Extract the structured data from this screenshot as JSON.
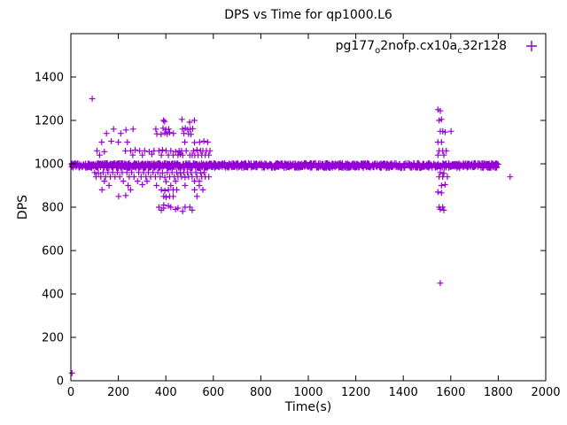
{
  "title": "DPS vs Time for qp1000.L6",
  "axes": {
    "x_label": "Time(s)",
    "y_label": "DPS"
  },
  "legend": {
    "seg0": "pg177",
    "seg1": "o",
    "seg2": "2nofp.cx10a",
    "seg3": "c",
    "seg4": "32r128",
    "marker": "plus"
  },
  "colors": {
    "marker": "#9400D3",
    "axis": "#000000",
    "background": "#FFFFFF"
  },
  "chart_data": {
    "type": "scatter",
    "title": "DPS vs Time for qp1000.L6",
    "xlabel": "Time(s)",
    "ylabel": "DPS",
    "series_name": "pg177_o2nofp.cx10a_c32r128",
    "marker": "plus",
    "xlim": [
      0,
      2000
    ],
    "ylim": [
      0,
      1600
    ],
    "x_ticks": [
      0,
      200,
      400,
      600,
      800,
      1000,
      1200,
      1400,
      1600,
      1800,
      2000
    ],
    "y_ticks": [
      0,
      200,
      400,
      600,
      800,
      1000,
      1200,
      1400
    ],
    "grid": false,
    "legend_position": "top-right-inside",
    "band": {
      "x_start": 0,
      "x_end": 1800,
      "y_center": 992,
      "y_halfwidth": 11,
      "count": 1300,
      "seed": 42
    },
    "points": [
      [
        90,
        1300
      ],
      [
        390,
        1200
      ],
      [
        468,
        1205
      ],
      [
        500,
        1192
      ],
      [
        520,
        1200
      ],
      [
        395,
        1195
      ],
      [
        180,
        1160
      ],
      [
        232,
        1156
      ],
      [
        262,
        1160
      ],
      [
        358,
        1160
      ],
      [
        388,
        1164
      ],
      [
        400,
        1158
      ],
      [
        412,
        1160
      ],
      [
        470,
        1160
      ],
      [
        482,
        1164
      ],
      [
        492,
        1158
      ],
      [
        503,
        1160
      ],
      [
        513,
        1162
      ],
      [
        150,
        1140
      ],
      [
        210,
        1140
      ],
      [
        362,
        1138
      ],
      [
        380,
        1136
      ],
      [
        396,
        1142
      ],
      [
        406,
        1138
      ],
      [
        416,
        1144
      ],
      [
        432,
        1140
      ],
      [
        476,
        1140
      ],
      [
        496,
        1138
      ],
      [
        506,
        1136
      ],
      [
        130,
        1100
      ],
      [
        170,
        1104
      ],
      [
        200,
        1100
      ],
      [
        238,
        1100
      ],
      [
        480,
        1100
      ],
      [
        521,
        1098
      ],
      [
        542,
        1100
      ],
      [
        560,
        1104
      ],
      [
        576,
        1100
      ],
      [
        110,
        1060
      ],
      [
        141,
        1056
      ],
      [
        230,
        1060
      ],
      [
        252,
        1060
      ],
      [
        271,
        1064
      ],
      [
        290,
        1060
      ],
      [
        311,
        1060
      ],
      [
        330,
        1056
      ],
      [
        350,
        1060
      ],
      [
        371,
        1060
      ],
      [
        386,
        1064
      ],
      [
        401,
        1060
      ],
      [
        421,
        1060
      ],
      [
        441,
        1056
      ],
      [
        456,
        1060
      ],
      [
        466,
        1060
      ],
      [
        486,
        1060
      ],
      [
        516,
        1060
      ],
      [
        531,
        1064
      ],
      [
        546,
        1060
      ],
      [
        556,
        1060
      ],
      [
        571,
        1060
      ],
      [
        586,
        1060
      ],
      [
        121,
        1040
      ],
      [
        261,
        1040
      ],
      [
        301,
        1040
      ],
      [
        341,
        1044
      ],
      [
        381,
        1040
      ],
      [
        411,
        1040
      ],
      [
        431,
        1040
      ],
      [
        451,
        1040
      ],
      [
        461,
        1044
      ],
      [
        471,
        1040
      ],
      [
        501,
        1040
      ],
      [
        511,
        1040
      ],
      [
        522,
        1040
      ],
      [
        536,
        1040
      ],
      [
        551,
        1040
      ],
      [
        566,
        1040
      ],
      [
        581,
        1040
      ],
      [
        100,
        960
      ],
      [
        116,
        956
      ],
      [
        136,
        960
      ],
      [
        156,
        960
      ],
      [
        176,
        960
      ],
      [
        196,
        960
      ],
      [
        216,
        960
      ],
      [
        236,
        960
      ],
      [
        256,
        960
      ],
      [
        286,
        960
      ],
      [
        306,
        960
      ],
      [
        326,
        960
      ],
      [
        346,
        960
      ],
      [
        366,
        960
      ],
      [
        386,
        958
      ],
      [
        406,
        960
      ],
      [
        426,
        960
      ],
      [
        446,
        960
      ],
      [
        461,
        958
      ],
      [
        476,
        960
      ],
      [
        491,
        960
      ],
      [
        506,
        960
      ],
      [
        526,
        960
      ],
      [
        546,
        958
      ],
      [
        561,
        960
      ],
      [
        106,
        940
      ],
      [
        126,
        940
      ],
      [
        146,
        940
      ],
      [
        166,
        940
      ],
      [
        186,
        940
      ],
      [
        206,
        940
      ],
      [
        246,
        940
      ],
      [
        266,
        940
      ],
      [
        296,
        940
      ],
      [
        316,
        940
      ],
      [
        336,
        940
      ],
      [
        356,
        940
      ],
      [
        376,
        940
      ],
      [
        396,
        938
      ],
      [
        416,
        940
      ],
      [
        436,
        940
      ],
      [
        451,
        940
      ],
      [
        466,
        940
      ],
      [
        481,
        938
      ],
      [
        496,
        940
      ],
      [
        511,
        940
      ],
      [
        531,
        940
      ],
      [
        551,
        940
      ],
      [
        566,
        940
      ],
      [
        581,
        940
      ],
      [
        141,
        920
      ],
      [
        221,
        920
      ],
      [
        281,
        920
      ],
      [
        321,
        920
      ],
      [
        401,
        918
      ],
      [
        441,
        920
      ],
      [
        521,
        920
      ],
      [
        541,
        920
      ],
      [
        161,
        900
      ],
      [
        241,
        900
      ],
      [
        301,
        904
      ],
      [
        361,
        900
      ],
      [
        421,
        900
      ],
      [
        481,
        900
      ],
      [
        541,
        900
      ],
      [
        131,
        880
      ],
      [
        251,
        880
      ],
      [
        381,
        880
      ],
      [
        396,
        876
      ],
      [
        411,
        880
      ],
      [
        431,
        880
      ],
      [
        446,
        880
      ],
      [
        521,
        880
      ],
      [
        556,
        880
      ],
      [
        201,
        850
      ],
      [
        231,
        854
      ],
      [
        391,
        850
      ],
      [
        401,
        846
      ],
      [
        416,
        850
      ],
      [
        431,
        850
      ],
      [
        531,
        850
      ],
      [
        391,
        810
      ],
      [
        411,
        806
      ],
      [
        371,
        800
      ],
      [
        391,
        796
      ],
      [
        421,
        800
      ],
      [
        451,
        796
      ],
      [
        481,
        800
      ],
      [
        501,
        800
      ],
      [
        381,
        786
      ],
      [
        441,
        790
      ],
      [
        471,
        781
      ],
      [
        511,
        786
      ],
      [
        1546,
        1250
      ],
      [
        1556,
        1244
      ],
      [
        1551,
        1200
      ],
      [
        1561,
        1205
      ],
      [
        1556,
        1150
      ],
      [
        1566,
        1150
      ],
      [
        1576,
        1146
      ],
      [
        1601,
        1150
      ],
      [
        1546,
        1100
      ],
      [
        1561,
        1100
      ],
      [
        1551,
        1060
      ],
      [
        1566,
        1060
      ],
      [
        1581,
        1060
      ],
      [
        1546,
        1040
      ],
      [
        1571,
        1040
      ],
      [
        1556,
        960
      ],
      [
        1571,
        956
      ],
      [
        1551,
        940
      ],
      [
        1566,
        940
      ],
      [
        1586,
        940
      ],
      [
        1561,
        900
      ],
      [
        1576,
        904
      ],
      [
        1546,
        870
      ],
      [
        1561,
        866
      ],
      [
        1551,
        800
      ],
      [
        1566,
        800
      ],
      [
        1556,
        790
      ],
      [
        1571,
        786
      ],
      [
        1556,
        450
      ],
      [
        5,
        35
      ],
      [
        1850,
        940
      ]
    ]
  }
}
